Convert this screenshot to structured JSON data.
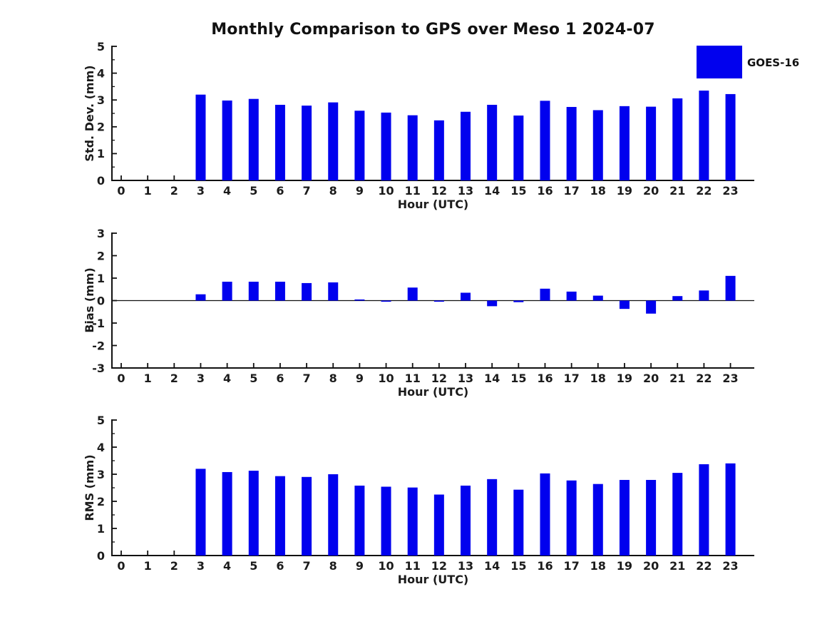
{
  "title": "Monthly Comparison to GPS over Meso 1 2024-07",
  "legend": {
    "label": "GOES-16",
    "color": "#0101ee"
  },
  "colors": {
    "bar": "#0101ee",
    "axis": "#111111",
    "text": "#1b1b1b",
    "background": "#ffffff"
  },
  "chart_data": [
    {
      "type": "bar",
      "name": "std-dev",
      "ylabel": "Std. Dev. (mm)",
      "xlabel": "Hour (UTC)",
      "ylim": [
        0,
        5
      ],
      "yticks": [
        0,
        1,
        2,
        3,
        4,
        5
      ],
      "minor_tick_step": 0.5,
      "zero_line": false,
      "legend_entry": "GOES-16",
      "categories": [
        0,
        1,
        2,
        3,
        4,
        5,
        6,
        7,
        8,
        9,
        10,
        11,
        12,
        13,
        14,
        15,
        16,
        17,
        18,
        19,
        20,
        21,
        22,
        23
      ],
      "values": [
        0,
        0,
        0,
        3.2,
        2.98,
        3.04,
        2.82,
        2.79,
        2.91,
        2.6,
        2.53,
        2.43,
        2.24,
        2.56,
        2.82,
        2.42,
        2.97,
        2.74,
        2.62,
        2.77,
        2.75,
        3.06,
        3.35,
        3.22
      ]
    },
    {
      "type": "bar",
      "name": "bias",
      "ylabel": "Bias (mm)",
      "xlabel": "Hour (UTC)",
      "ylim": [
        -3,
        3
      ],
      "yticks": [
        -3,
        -2,
        -1,
        0,
        1,
        2,
        3
      ],
      "minor_tick_step": 0,
      "zero_line": true,
      "legend_entry": "GOES-16",
      "categories": [
        0,
        1,
        2,
        3,
        4,
        5,
        6,
        7,
        8,
        9,
        10,
        11,
        12,
        13,
        14,
        15,
        16,
        17,
        18,
        19,
        20,
        21,
        22,
        23
      ],
      "values": [
        0,
        0,
        0,
        0.28,
        0.84,
        0.84,
        0.84,
        0.78,
        0.81,
        0.05,
        -0.05,
        0.58,
        -0.05,
        0.35,
        -0.25,
        -0.07,
        0.53,
        0.4,
        0.22,
        -0.37,
        -0.58,
        0.2,
        0.45,
        1.1
      ]
    },
    {
      "type": "bar",
      "name": "rms",
      "ylabel": "RMS (mm)",
      "xlabel": "Hour (UTC)",
      "ylim": [
        0,
        5
      ],
      "yticks": [
        0,
        1,
        2,
        3,
        4,
        5
      ],
      "minor_tick_step": 0.5,
      "zero_line": false,
      "legend_entry": "GOES-16",
      "categories": [
        0,
        1,
        2,
        3,
        4,
        5,
        6,
        7,
        8,
        9,
        10,
        11,
        12,
        13,
        14,
        15,
        16,
        17,
        18,
        19,
        20,
        21,
        22,
        23
      ],
      "values": [
        0,
        0,
        0,
        3.2,
        3.08,
        3.13,
        2.93,
        2.9,
        3.0,
        2.58,
        2.54,
        2.51,
        2.25,
        2.58,
        2.82,
        2.43,
        3.03,
        2.77,
        2.64,
        2.79,
        2.79,
        3.05,
        3.37,
        3.4
      ]
    }
  ]
}
